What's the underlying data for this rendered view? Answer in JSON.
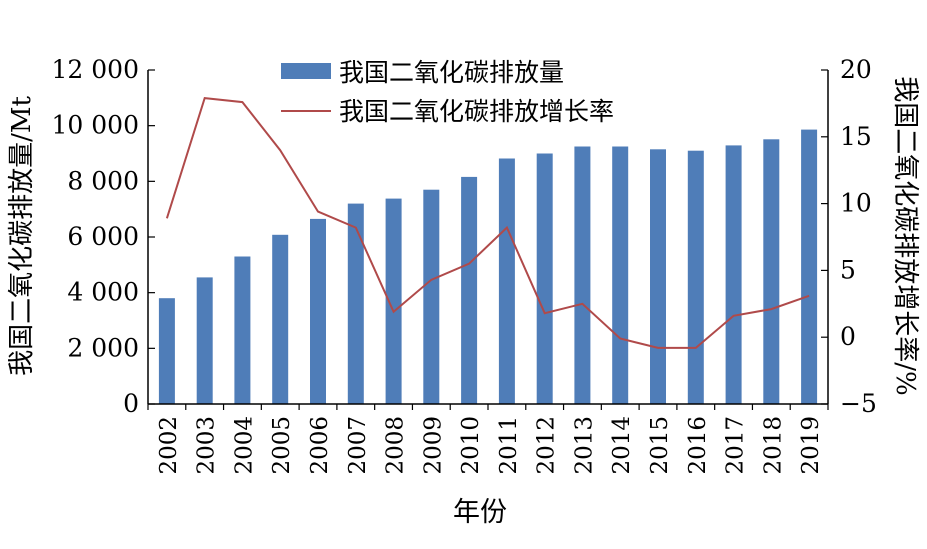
{
  "chart_data": {
    "type": "bar",
    "categories": [
      "2002",
      "2003",
      "2004",
      "2005",
      "2006",
      "2007",
      "2008",
      "2009",
      "2010",
      "2011",
      "2012",
      "2013",
      "2014",
      "2015",
      "2016",
      "2017",
      "2018",
      "2019"
    ],
    "series": [
      {
        "name": "我国二氧化碳排放量",
        "type": "bar",
        "axis": "left",
        "color": "#4f7db8",
        "values": [
          3800,
          4550,
          5300,
          6080,
          6650,
          7200,
          7380,
          7700,
          8160,
          8820,
          9000,
          9250,
          9250,
          9150,
          9100,
          9290,
          9510,
          9860
        ]
      },
      {
        "name": "我国二氧化碳排放增长率",
        "type": "line",
        "axis": "right",
        "color": "#b04a4a",
        "values": [
          8.9,
          17.9,
          17.6,
          14.0,
          9.4,
          8.2,
          1.9,
          4.3,
          5.5,
          8.2,
          1.8,
          2.5,
          -0.1,
          -0.8,
          -0.8,
          1.6,
          2.1,
          3.1
        ]
      }
    ],
    "xlabel": "年份",
    "ylabel": "我国二氧化碳排放量/Mt",
    "y2label": "我国二氧化碳排放增长率/%",
    "ylim": [
      0,
      12000
    ],
    "y2lim": [
      -5,
      20
    ],
    "yticks": [
      0,
      2000,
      4000,
      6000,
      8000,
      10000,
      12000
    ],
    "ytick_labels": [
      "0",
      "2 000",
      "4 000",
      "6 000",
      "8 000",
      "10 000",
      "12 000"
    ],
    "y2ticks": [
      -5,
      0,
      5,
      10,
      15,
      20
    ],
    "y2tick_labels": [
      "−5",
      "0",
      "5",
      "10",
      "15",
      "20"
    ],
    "grid": false,
    "legend_position": "top-center"
  }
}
